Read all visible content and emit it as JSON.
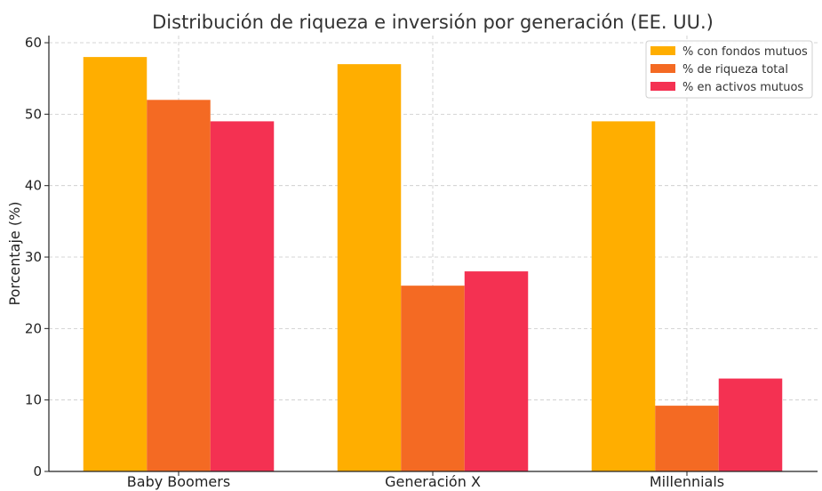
{
  "chart_data": {
    "type": "bar",
    "title": "Distribución de riqueza e inversión por generación (EE. UU.)",
    "xlabel": "",
    "ylabel": "Porcentaje (%)",
    "ylim": [
      0,
      61
    ],
    "yticks": [
      0,
      10,
      20,
      30,
      40,
      50,
      60
    ],
    "grid": true,
    "legend_position": "top-right",
    "categories": [
      "Baby Boomers",
      "Generación X",
      "Millennials"
    ],
    "series": [
      {
        "name": "% con fondos mutuos",
        "values": [
          58,
          57,
          49
        ],
        "color": "#FFAE00"
      },
      {
        "name": "% de riqueza total",
        "values": [
          52,
          26,
          9.2
        ],
        "color": "#F46A23"
      },
      {
        "name": "% en activos mutuos",
        "values": [
          49,
          28,
          13
        ],
        "color": "#F43152"
      }
    ]
  }
}
